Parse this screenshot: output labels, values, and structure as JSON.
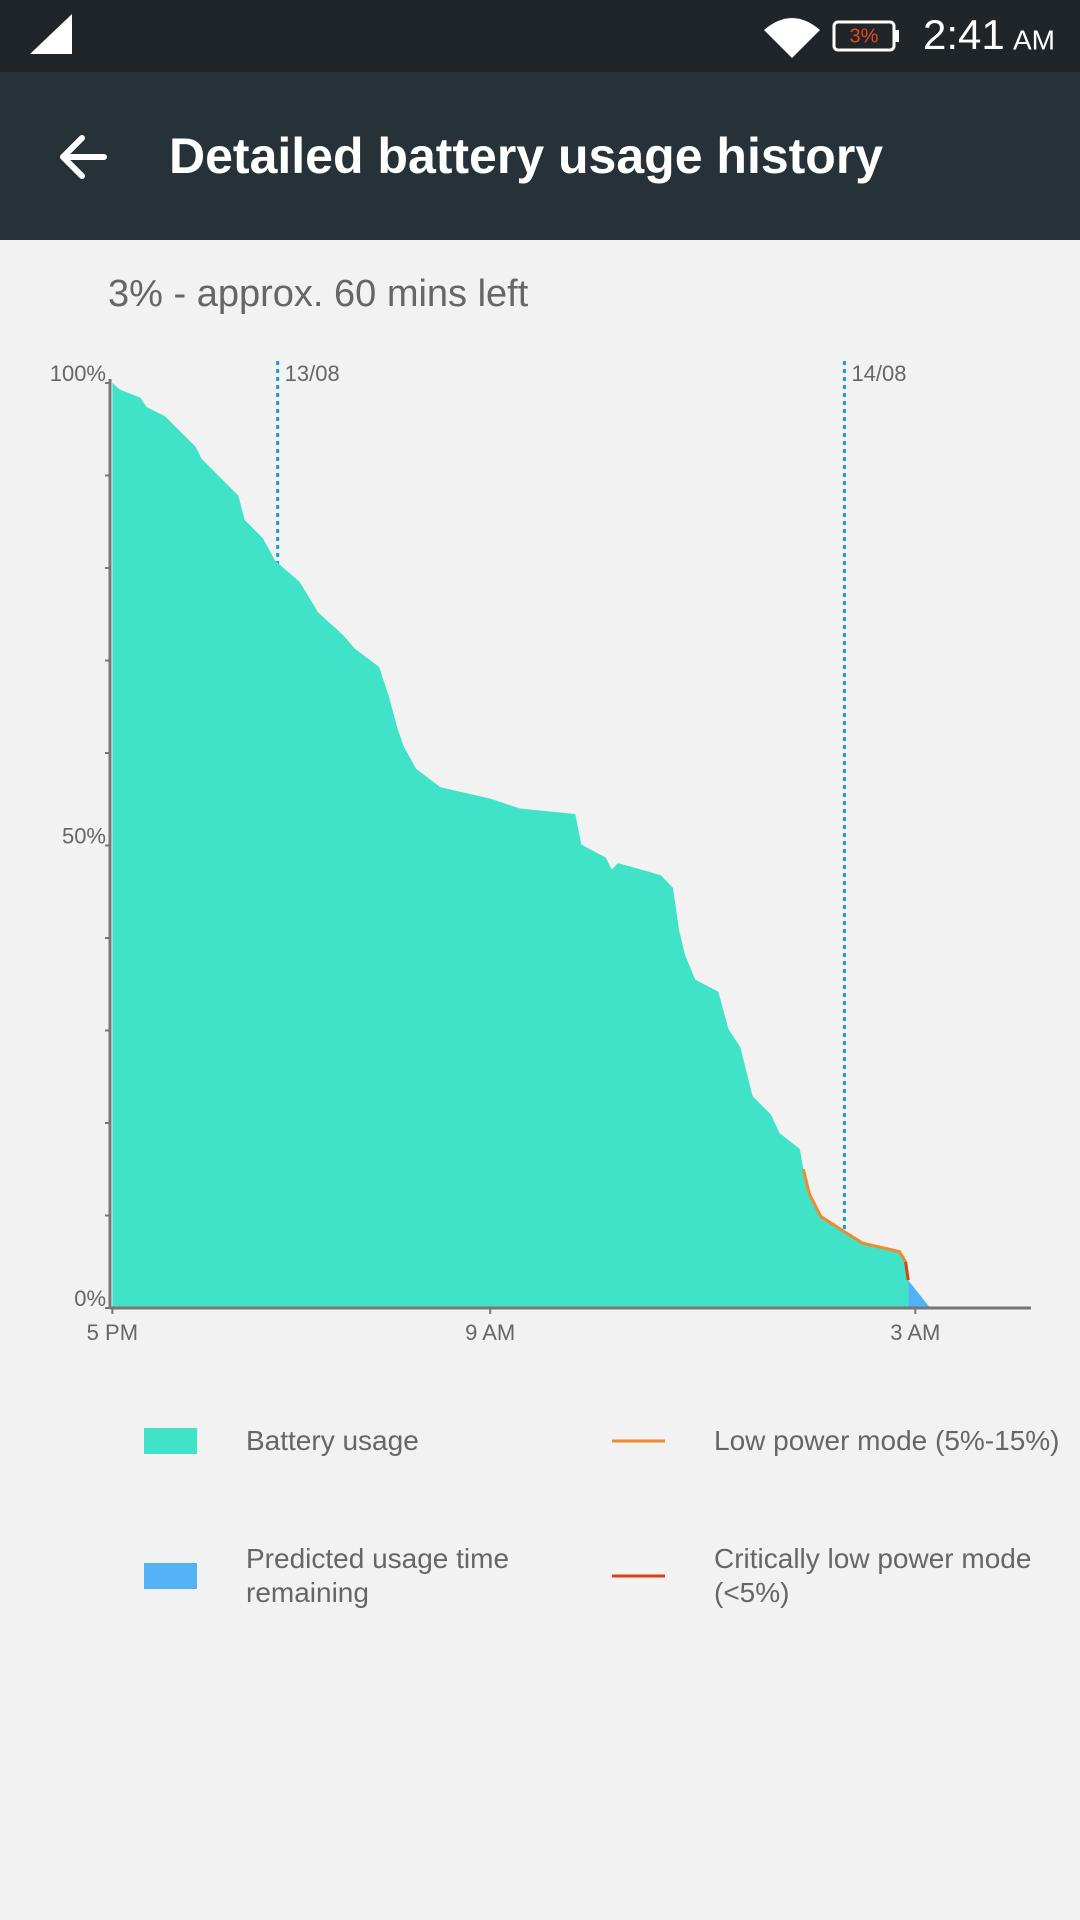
{
  "status_bar": {
    "battery": "3%",
    "time": "2:41",
    "meridiem": "AM"
  },
  "app_bar": {
    "title": "Detailed battery usage history"
  },
  "summary": "3% - approx. 60 mins left",
  "chart_data": {
    "type": "area",
    "xlim": [
      -0.1,
      38.9
    ],
    "xticks": [
      {
        "value": 0,
        "label": "5 PM"
      },
      {
        "value": 16,
        "label": "9 AM"
      },
      {
        "value": 34,
        "label": "3 AM"
      }
    ],
    "ylim": [
      0,
      100
    ],
    "yticks": [
      {
        "value": 0,
        "label": "0%"
      },
      {
        "value": 50,
        "label": "50%"
      },
      {
        "value": 100,
        "label": "100%"
      }
    ],
    "minor_yticks": [
      10,
      20,
      30,
      40,
      60,
      70,
      80,
      90
    ],
    "grid": false,
    "markers": [
      {
        "x": 7,
        "label": "13/08",
        "color": "#1a9be0"
      },
      {
        "x": 31,
        "label": "14/08",
        "color": "#1a9be0"
      }
    ],
    "series": [
      {
        "name": "Battery usage",
        "type": "area",
        "color": "#40e2c8",
        "x": [
          0,
          0.31,
          1.19,
          1.45,
          2.23,
          3.53,
          3.78,
          4.56,
          5.34,
          5.6,
          6.38,
          6.89,
          7.93,
          8.71,
          9.75,
          10.26,
          11.3,
          11.72,
          12.08,
          12.34,
          12.86,
          13.89,
          15.97,
          17.26,
          19.6,
          19.86,
          20.89,
          21.15,
          21.41,
          23.22,
          23.74,
          24.0,
          24.26,
          24.68,
          25.66,
          26.08,
          26.59,
          27.11,
          27.89,
          28.25,
          29.11,
          29.26,
          29.52,
          30.0,
          30.97,
          31.78,
          33.33,
          33.59,
          33.7
        ],
        "values": [
          100,
          99.3,
          98.4,
          97.4,
          96.4,
          93.1,
          91.8,
          89.8,
          87.8,
          85.2,
          83.2,
          80.8,
          78.5,
          75.2,
          72.8,
          71.3,
          69.3,
          66.0,
          62.6,
          60.7,
          58.3,
          56.3,
          55.1,
          54.0,
          53.4,
          50.1,
          48.7,
          47.4,
          48.1,
          46.8,
          45.4,
          40.8,
          38.1,
          35.5,
          34.2,
          30.2,
          28.2,
          22.9,
          20.9,
          18.9,
          17.2,
          15.0,
          12.3,
          9.9,
          8.3,
          7.0,
          6.1,
          5.0,
          3.0
        ]
      },
      {
        "name": "Low power mode (5%-15%)",
        "type": "line",
        "color": "#f08a30",
        "x": [
          29.26,
          29.52,
          30.0,
          30.97,
          31.78,
          33.33,
          33.59
        ],
        "values": [
          15.0,
          12.3,
          9.9,
          8.3,
          7.0,
          6.1,
          5.0
        ]
      },
      {
        "name": "Predicted usage time remaining",
        "type": "area",
        "color": "#52b2f5",
        "x": [
          33.7,
          34.63
        ],
        "values": [
          3.0,
          0
        ]
      },
      {
        "name": "Critically low power mode (<5%)",
        "type": "line",
        "color": "#d84315",
        "x": [
          33.59,
          33.7
        ],
        "values": [
          5.0,
          3.0
        ]
      }
    ]
  }
}
